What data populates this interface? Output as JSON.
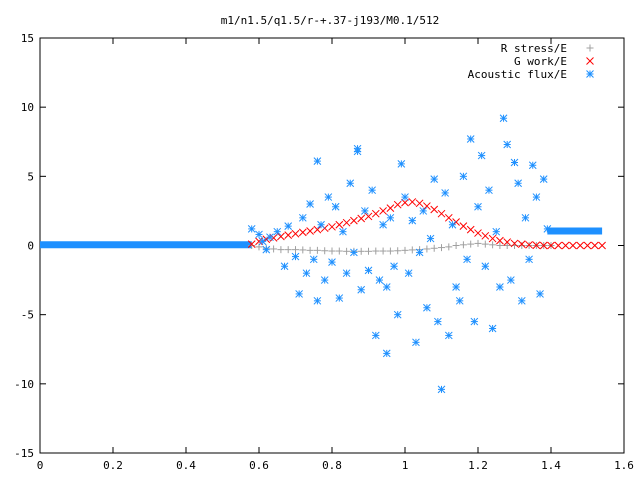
{
  "chart_data": {
    "type": "scatter",
    "title": "m1/n1.5/q1.5/r-+.37-j193/M0.1/512",
    "xlim": [
      0,
      1.6
    ],
    "ylim": [
      -15,
      15
    ],
    "x_ticks": [
      "0",
      "0.2",
      "0.4",
      "0.6",
      "0.8",
      "1",
      "1.2",
      "1.4",
      "1.6"
    ],
    "y_ticks": [
      "15",
      "10",
      "5",
      "0",
      "-5",
      "-10",
      "-15"
    ],
    "x_tick_values": [
      0,
      0.2,
      0.4,
      0.6,
      0.8,
      1.0,
      1.2,
      1.4,
      1.6
    ],
    "y_tick_values": [
      15,
      10,
      5,
      0,
      -5,
      -10,
      -15
    ],
    "legend": {
      "placement": "top-right",
      "entries": [
        "R stress/E",
        "G work/E",
        "Acoustic flux/E"
      ]
    },
    "series": [
      {
        "name": "R stress/E",
        "marker": "plus",
        "color": "#a0a0a0",
        "x": [
          0.58,
          0.6,
          0.62,
          0.64,
          0.66,
          0.68,
          0.7,
          0.72,
          0.74,
          0.76,
          0.78,
          0.8,
          0.82,
          0.84,
          0.86,
          0.88,
          0.9,
          0.92,
          0.94,
          0.96,
          0.98,
          1.0,
          1.02,
          1.04,
          1.06,
          1.08,
          1.1,
          1.12,
          1.14,
          1.16,
          1.18,
          1.2,
          1.22,
          1.24,
          1.26,
          1.28,
          1.3,
          1.32,
          1.34,
          1.36,
          1.38,
          1.4
        ],
        "y": [
          0.0,
          -0.1,
          -0.2,
          -0.25,
          -0.3,
          -0.3,
          -0.3,
          -0.32,
          -0.35,
          -0.35,
          -0.38,
          -0.4,
          -0.4,
          -0.42,
          -0.42,
          -0.42,
          -0.42,
          -0.4,
          -0.4,
          -0.4,
          -0.38,
          -0.35,
          -0.32,
          -0.3,
          -0.25,
          -0.2,
          -0.15,
          -0.1,
          0.0,
          0.05,
          0.1,
          0.15,
          0.1,
          0.05,
          0.0,
          0.0,
          0.0,
          0.0,
          0.0,
          0.0,
          0.0,
          0.0
        ]
      },
      {
        "name": "G work/E",
        "marker": "cross",
        "color": "#ff0000",
        "x": [
          0.58,
          0.6,
          0.62,
          0.64,
          0.66,
          0.68,
          0.7,
          0.72,
          0.74,
          0.76,
          0.78,
          0.8,
          0.82,
          0.84,
          0.86,
          0.88,
          0.9,
          0.92,
          0.94,
          0.96,
          0.98,
          1.0,
          1.02,
          1.04,
          1.06,
          1.08,
          1.1,
          1.12,
          1.14,
          1.16,
          1.18,
          1.2,
          1.22,
          1.24,
          1.26,
          1.28,
          1.3,
          1.32,
          1.34,
          1.36,
          1.38,
          1.4,
          1.42,
          1.44,
          1.46,
          1.48,
          1.5,
          1.52,
          1.54
        ],
        "y": [
          0.1,
          0.3,
          0.45,
          0.55,
          0.65,
          0.75,
          0.85,
          0.95,
          1.05,
          1.15,
          1.25,
          1.35,
          1.5,
          1.65,
          1.8,
          1.95,
          2.1,
          2.3,
          2.5,
          2.7,
          2.95,
          3.1,
          3.15,
          3.05,
          2.85,
          2.6,
          2.3,
          2.0,
          1.7,
          1.4,
          1.15,
          0.9,
          0.7,
          0.5,
          0.35,
          0.25,
          0.15,
          0.1,
          0.05,
          0.02,
          0.0,
          0.0,
          0.0,
          0.0,
          0.0,
          0.0,
          0.0,
          0.0,
          0.0
        ]
      },
      {
        "name": "Acoustic flux/E",
        "marker": "star",
        "color": "#1e90ff",
        "x": [
          0.58,
          0.6,
          0.61,
          0.62,
          0.63,
          0.65,
          0.67,
          0.68,
          0.7,
          0.71,
          0.72,
          0.73,
          0.74,
          0.75,
          0.76,
          0.76,
          0.77,
          0.78,
          0.79,
          0.8,
          0.81,
          0.82,
          0.83,
          0.84,
          0.85,
          0.86,
          0.87,
          0.87,
          0.88,
          0.89,
          0.9,
          0.91,
          0.92,
          0.93,
          0.94,
          0.95,
          0.95,
          0.96,
          0.97,
          0.98,
          0.99,
          1.0,
          1.01,
          1.02,
          1.03,
          1.04,
          1.05,
          1.06,
          1.07,
          1.08,
          1.09,
          1.1,
          1.11,
          1.12,
          1.13,
          1.14,
          1.15,
          1.16,
          1.17,
          1.18,
          1.19,
          1.2,
          1.21,
          1.22,
          1.23,
          1.24,
          1.25,
          1.26,
          1.27,
          1.28,
          1.29,
          1.3,
          1.31,
          1.32,
          1.33,
          1.34,
          1.35,
          1.36,
          1.37,
          1.38,
          1.39
        ],
        "y": [
          1.2,
          0.8,
          0.3,
          -0.3,
          0.6,
          1.0,
          -1.5,
          1.4,
          -0.8,
          -3.5,
          2.0,
          -2.0,
          3.0,
          -1.0,
          6.1,
          -4.0,
          1.5,
          -2.5,
          3.5,
          -1.2,
          2.8,
          -3.8,
          1.0,
          -2.0,
          4.5,
          -0.5,
          7.0,
          6.8,
          -3.2,
          2.5,
          -1.8,
          4.0,
          -6.5,
          -2.5,
          1.5,
          -7.8,
          -3.0,
          2.0,
          -1.5,
          -5.0,
          5.9,
          3.5,
          -2.0,
          1.8,
          -7.0,
          -0.5,
          2.5,
          -4.5,
          0.5,
          4.8,
          -5.5,
          -10.4,
          3.8,
          -6.5,
          1.5,
          -3.0,
          -4.0,
          5.0,
          -1.0,
          7.7,
          -5.5,
          2.8,
          6.5,
          -1.5,
          4.0,
          -6.0,
          1.0,
          -3.0,
          9.2,
          7.3,
          -2.5,
          6.0,
          4.5,
          -4.0,
          2.0,
          -1.0,
          5.8,
          3.5,
          -3.5,
          4.8,
          1.2
        ]
      }
    ]
  },
  "flux_tails": {
    "left_y": 0.05,
    "right_y": 1.05
  }
}
